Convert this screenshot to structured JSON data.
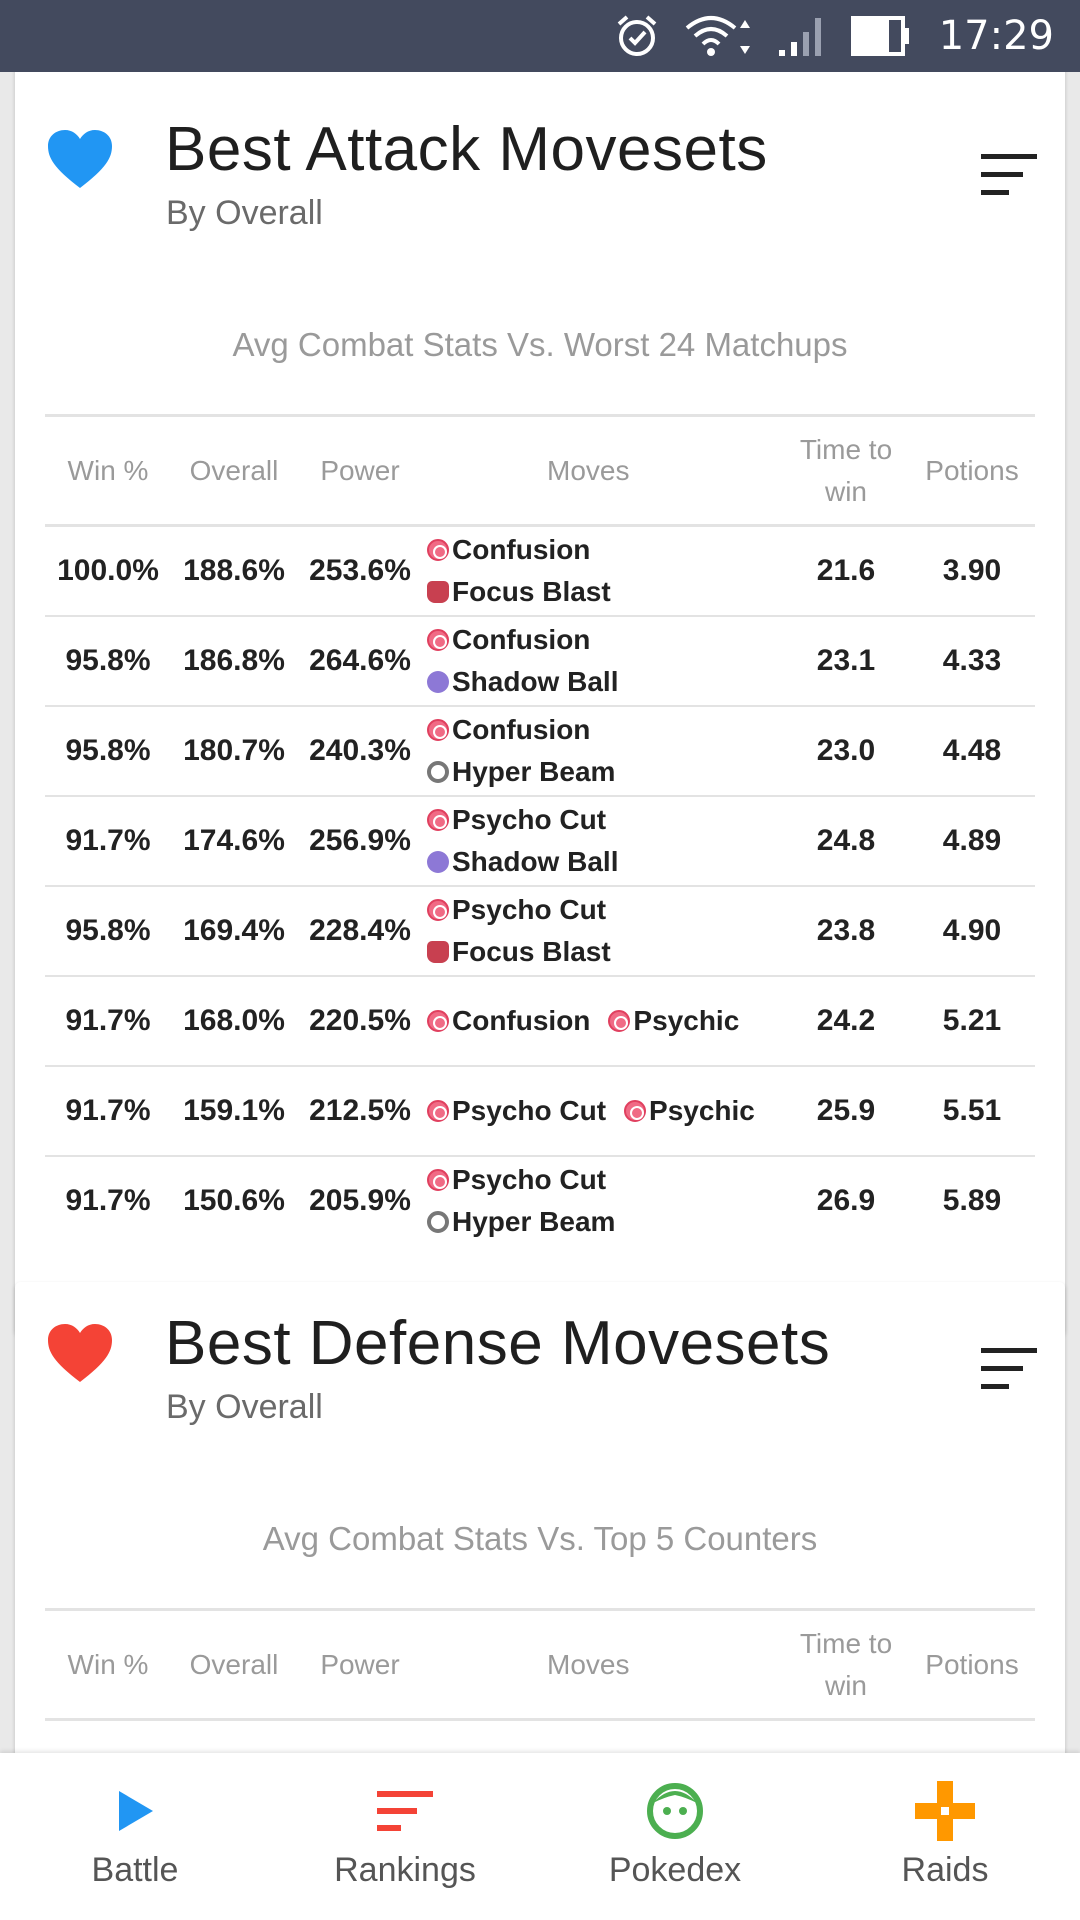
{
  "status_bar": {
    "time": "17:29",
    "icons": [
      "alarm-icon",
      "wifi-icon",
      "signal-icon",
      "battery-icon"
    ]
  },
  "colors": {
    "status_bar": "#434a5e",
    "attack_heart": "#2196f3",
    "defense_heart": "#f44336",
    "battle": "#2196f3",
    "rankings": "#f44336",
    "pokedex": "#4caf50",
    "raids": "#ff9800"
  },
  "attack_card": {
    "title": "Best Attack Movesets",
    "subtitle": "By Overall",
    "caption": "Avg Combat Stats Vs. Worst 24 Matchups",
    "headers": {
      "win": "Win %",
      "overall": "Overall",
      "power": "Power",
      "moves": "Moves",
      "time": "Time to win",
      "potions": "Potions"
    },
    "rows": [
      {
        "win": "100.0%",
        "overall": "188.6%",
        "power": "253.6%",
        "fast": "Confusion",
        "fast_type": "psychic",
        "charge": "Focus Blast",
        "charge_type": "fighting",
        "layout": "stack",
        "time": "21.6",
        "potions": "3.90"
      },
      {
        "win": "95.8%",
        "overall": "186.8%",
        "power": "264.6%",
        "fast": "Confusion",
        "fast_type": "psychic",
        "charge": "Shadow Ball",
        "charge_type": "ghost",
        "layout": "stack",
        "time": "23.1",
        "potions": "4.33"
      },
      {
        "win": "95.8%",
        "overall": "180.7%",
        "power": "240.3%",
        "fast": "Confusion",
        "fast_type": "psychic",
        "charge": "Hyper Beam",
        "charge_type": "normal",
        "layout": "stack",
        "time": "23.0",
        "potions": "4.48"
      },
      {
        "win": "91.7%",
        "overall": "174.6%",
        "power": "256.9%",
        "fast": "Psycho Cut",
        "fast_type": "psychic",
        "charge": "Shadow Ball",
        "charge_type": "ghost",
        "layout": "stack",
        "time": "24.8",
        "potions": "4.89"
      },
      {
        "win": "95.8%",
        "overall": "169.4%",
        "power": "228.4%",
        "fast": "Psycho Cut",
        "fast_type": "psychic",
        "charge": "Focus Blast",
        "charge_type": "fighting",
        "layout": "stack",
        "time": "23.8",
        "potions": "4.90"
      },
      {
        "win": "91.7%",
        "overall": "168.0%",
        "power": "220.5%",
        "fast": "Confusion",
        "fast_type": "psychic",
        "charge": "Psychic",
        "charge_type": "psychic",
        "layout": "inline",
        "time": "24.2",
        "potions": "5.21"
      },
      {
        "win": "91.7%",
        "overall": "159.1%",
        "power": "212.5%",
        "fast": "Psycho Cut",
        "fast_type": "psychic",
        "charge": "Psychic",
        "charge_type": "psychic",
        "layout": "inline",
        "time": "25.9",
        "potions": "5.51"
      },
      {
        "win": "91.7%",
        "overall": "150.6%",
        "power": "205.9%",
        "fast": "Psycho Cut",
        "fast_type": "psychic",
        "charge": "Hyper Beam",
        "charge_type": "normal",
        "layout": "stack",
        "time": "26.9",
        "potions": "5.89"
      }
    ]
  },
  "defense_card": {
    "title": "Best Defense Movesets",
    "subtitle": "By Overall",
    "caption": "Avg Combat Stats Vs. Top 5 Counters",
    "headers": {
      "win": "Win %",
      "overall": "Overall",
      "power": "Power",
      "moves": "Moves",
      "time": "Time to win",
      "potions": "Potions"
    }
  },
  "bottom_nav": [
    {
      "label": "Battle",
      "icon": "play-icon"
    },
    {
      "label": "Rankings",
      "icon": "rankings-icon"
    },
    {
      "label": "Pokedex",
      "icon": "pokedex-face-icon"
    },
    {
      "label": "Raids",
      "icon": "raids-cross-icon"
    }
  ]
}
